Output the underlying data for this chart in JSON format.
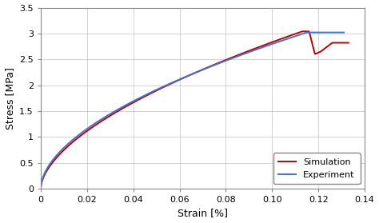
{
  "title": "",
  "xlabel": "Strain [%]",
  "ylabel": "Stress [MPa]",
  "xlim": [
    0,
    0.14
  ],
  "ylim": [
    0,
    3.5
  ],
  "xticks": [
    0,
    0.02,
    0.04,
    0.06,
    0.08,
    0.1,
    0.12,
    0.14
  ],
  "yticks": [
    0,
    0.5,
    1.0,
    1.5,
    2.0,
    2.5,
    3.0,
    3.5
  ],
  "experiment_color": "#4472C4",
  "simulation_color": "#C00000",
  "line_width": 1.4,
  "background_color": "#ffffff",
  "grid_color": "#c0c0c0"
}
